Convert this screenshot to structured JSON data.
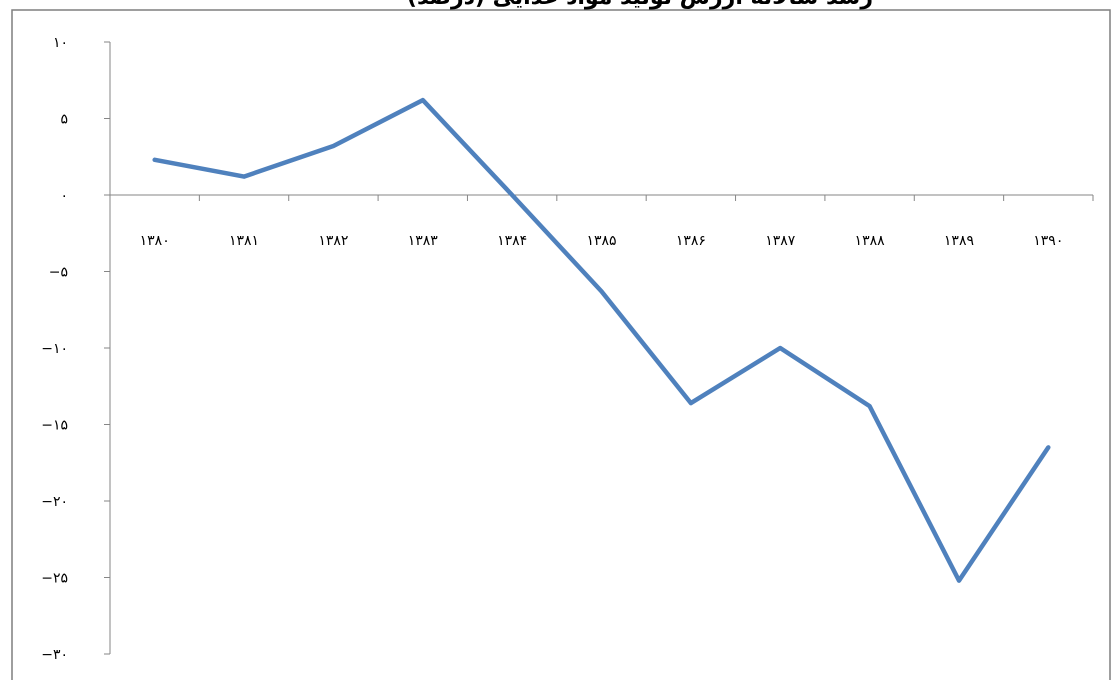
{
  "chart_data": {
    "type": "line",
    "title": "رشد سالانه ارزش تولید مواد غذایی (درصد)",
    "xlabel": "",
    "ylabel": "",
    "ylim": [
      -30,
      10
    ],
    "y_ticks": [
      10,
      5,
      0,
      -5,
      -10,
      -15,
      -20,
      -25,
      -30
    ],
    "y_tick_labels": [
      "۱۰",
      "۵",
      "۰",
      "−۵",
      "−۱۰",
      "−۱۵",
      "−۲۰",
      "−۲۵",
      "−۳۰"
    ],
    "categories": [
      "۱۳۸۰",
      "۱۳۸۱",
      "۱۳۸۲",
      "۱۳۸۳",
      "۱۳۸۴",
      "۱۳۸۵",
      "۱۳۸۶",
      "۱۳۸۷",
      "۱۳۸۸",
      "۱۳۸۹",
      "۱۳۹۰"
    ],
    "series": [
      {
        "color": "#4f81bd",
        "values": [
          2.3,
          1.2,
          3.2,
          6.2,
          0.0,
          -6.3,
          -13.6,
          -10.0,
          -13.8,
          -25.2,
          -16.5
        ]
      }
    ],
    "grid": false,
    "legend": "none"
  }
}
